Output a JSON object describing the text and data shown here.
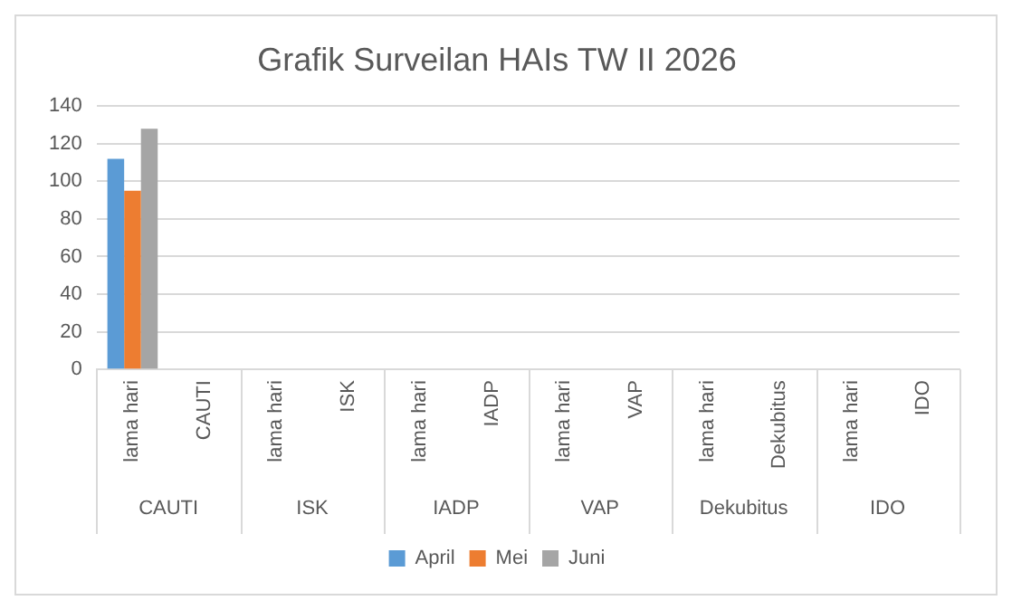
{
  "chart_data": {
    "type": "bar",
    "title": "Grafik Surveilan HAIs TW II 2026",
    "categories": [
      "lama hari",
      "CAUTI",
      "lama hari",
      "ISK",
      "lama hari",
      "IADP",
      "lama hari",
      "VAP",
      "lama hari",
      "Dekubitus",
      "lama hari",
      "IDO"
    ],
    "annotations": [
      "CAUTI",
      "ISK",
      "IADP",
      "VAP",
      "Dekubitus",
      "IDO"
    ],
    "series": [
      {
        "name": "April",
        "color": "#5b9bd5",
        "values": [
          112,
          null,
          null,
          null,
          null,
          null,
          null,
          null,
          null,
          null,
          null,
          null
        ]
      },
      {
        "name": "Mei",
        "color": "#ed7d31",
        "values": [
          95,
          null,
          null,
          null,
          null,
          null,
          null,
          null,
          null,
          null,
          null,
          null
        ]
      },
      {
        "name": "Juni",
        "color": "#a5a5a5",
        "values": [
          128,
          null,
          null,
          null,
          null,
          null,
          null,
          null,
          null,
          null,
          null,
          null
        ]
      }
    ],
    "ylim": [
      0,
      140
    ],
    "yticks": [
      0,
      20,
      40,
      60,
      80,
      100,
      120,
      140
    ],
    "grid": "y",
    "legend": "bottom"
  }
}
